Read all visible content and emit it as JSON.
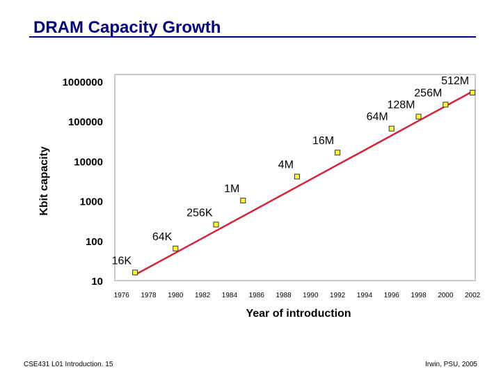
{
  "slide": {
    "title": "DRAM Capacity Growth",
    "footer_left": "CSE431  L01 Introduction. 15",
    "footer_right": "Irwin, PSU, 2005"
  },
  "colors": {
    "title": "#000080",
    "line": "#d8223a",
    "marker_fill": "#ffff33",
    "marker_stroke": "#333333"
  },
  "chart_data": {
    "type": "scatter",
    "title": "",
    "xlabel": "Year of introduction",
    "ylabel": "Kbit capacity",
    "x_ticks": [
      1976,
      1978,
      1980,
      1982,
      1984,
      1986,
      1988,
      1990,
      1992,
      1994,
      1996,
      1998,
      2000,
      2002
    ],
    "y_ticks": [
      10,
      100,
      1000,
      10000,
      100000,
      1000000
    ],
    "y_tick_labels": [
      "10",
      "100",
      "1000",
      "10000",
      "100000",
      "1000000"
    ],
    "xlim": [
      1975.5,
      2002.2
    ],
    "ylim": [
      10,
      1000000
    ],
    "y_scale": "log",
    "points": [
      {
        "label": "16K",
        "x": 1977,
        "y": 16
      },
      {
        "label": "64K",
        "x": 1980,
        "y": 64
      },
      {
        "label": "256K",
        "x": 1983,
        "y": 256
      },
      {
        "label": "1M",
        "x": 1985,
        "y": 1024
      },
      {
        "label": "4M",
        "x": 1989,
        "y": 4096
      },
      {
        "label": "16M",
        "x": 1992,
        "y": 16384
      },
      {
        "label": "64M",
        "x": 1996,
        "y": 65536
      },
      {
        "label": "128M",
        "x": 1998,
        "y": 131072
      },
      {
        "label": "256M",
        "x": 2000,
        "y": 262144
      },
      {
        "label": "512M",
        "x": 2002,
        "y": 524288
      }
    ],
    "trend_line": {
      "start": {
        "x": 1977,
        "y": 14
      },
      "end": {
        "x": 2002,
        "y": 560000
      }
    },
    "grid": false,
    "legend": "none"
  }
}
